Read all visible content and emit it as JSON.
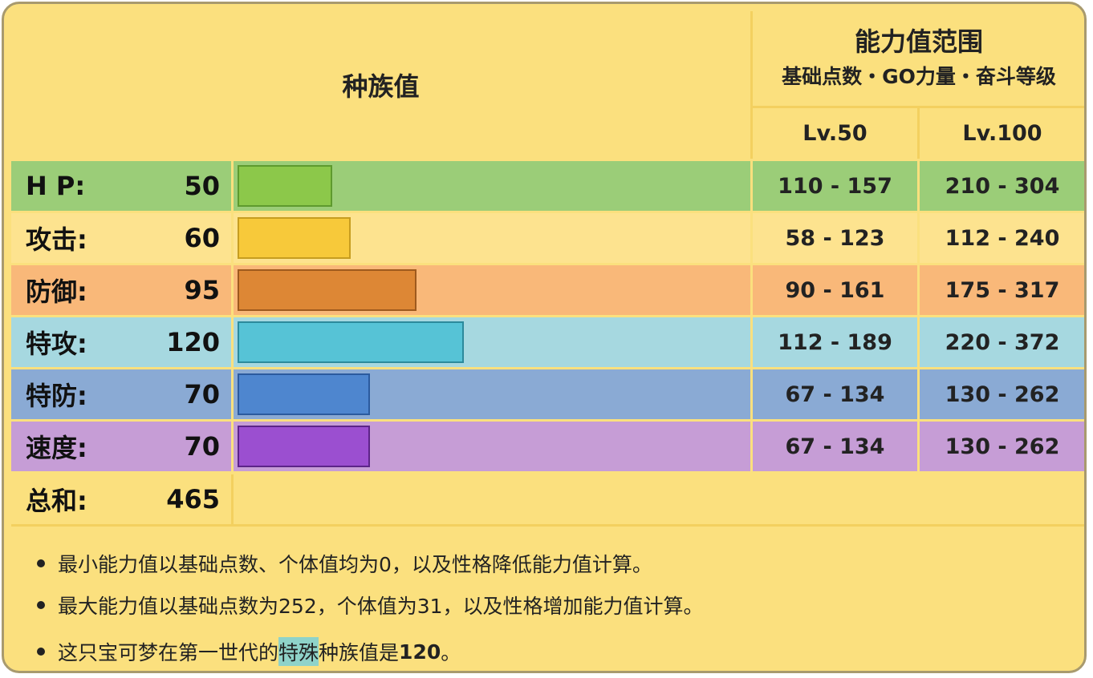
{
  "header": {
    "base_stats_title": "种族值",
    "range_title": "能力值范围",
    "range_subtitle": "基础点数・GO力量・奋斗等级",
    "lv50": "Lv.50",
    "lv100": "Lv.100"
  },
  "stats": [
    {
      "label": "H P:",
      "value": "50",
      "base": 50,
      "lv50": "110 - 157",
      "lv100": "210 - 304",
      "row_color": "#9bcd78",
      "bar_color": "#8cc84a",
      "bar_border": "#5e9a2e"
    },
    {
      "label": "攻击:",
      "value": "60",
      "base": 60,
      "lv50": "58 - 123",
      "lv100": "112 - 240",
      "row_color": "#fde38f",
      "bar_color": "#f7c93a",
      "bar_border": "#c79d20"
    },
    {
      "label": "防御:",
      "value": "95",
      "base": 95,
      "lv50": "90 - 161",
      "lv100": "175 - 317",
      "row_color": "#f9b879",
      "bar_color": "#dd8735",
      "bar_border": "#9e5a1e"
    },
    {
      "label": "特攻:",
      "value": "120",
      "base": 120,
      "lv50": "112 - 189",
      "lv100": "220 - 372",
      "row_color": "#a6d8e0",
      "bar_color": "#56c3d6",
      "bar_border": "#2c8a9c"
    },
    {
      "label": "特防:",
      "value": "70",
      "base": 70,
      "lv50": "67 - 134",
      "lv100": "130 - 262",
      "row_color": "#8aaad4",
      "bar_color": "#4e86cf",
      "bar_border": "#2b5a9e"
    },
    {
      "label": "速度:",
      "value": "70",
      "base": 70,
      "lv50": "67 - 134",
      "lv100": "130 - 262",
      "row_color": "#c69dd6",
      "bar_color": "#9b4fd0",
      "bar_border": "#5c2488"
    }
  ],
  "total": {
    "label": "总和:",
    "value": "465"
  },
  "notes": {
    "n1": "最小能力值以基础点数、个体值均为0，以及性格降低能力值计算。",
    "n2": "最大能力值以基础点数为252，个体值为31，以及性格增加能力值计算。",
    "n3_pre": "这只宝可梦在第一世代的",
    "n3_hl": "特殊",
    "n3_mid": "种族值是",
    "n3_val": "120",
    "n3_end": "。"
  }
}
